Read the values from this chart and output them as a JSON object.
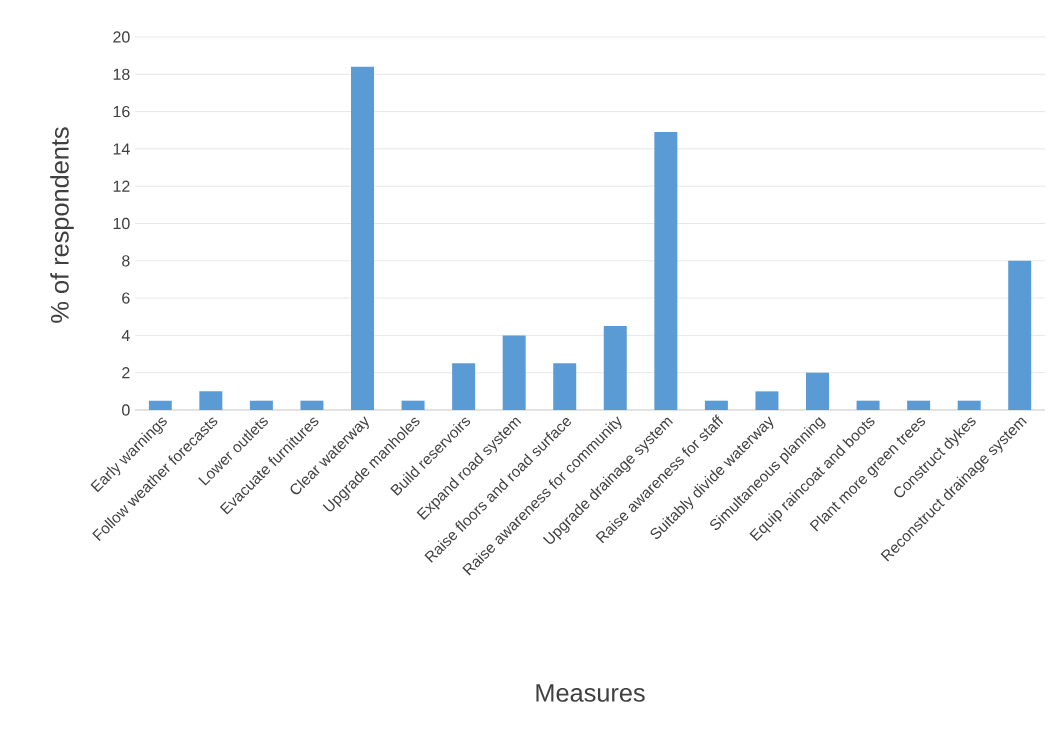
{
  "chart_data": {
    "type": "bar",
    "xlabel": "Measures",
    "ylabel": "% of respondents",
    "categories": [
      "Early warnings",
      "Follow weather forecasts",
      "Lower outlets",
      "Evacuate furnitures",
      "Clear waterway",
      "Upgrade manholes",
      "Build reservoirs",
      "Expand road system",
      "Raise floors and road surface",
      "Raise awareness for community",
      "Upgrade drainage system",
      "Raise awareness for staff",
      "Suitably divide waterway",
      "Simultaneous planning",
      "Equip raincoat and boots",
      "Plant more green trees",
      "Construct dykes",
      "Reconstruct drainage system"
    ],
    "values": [
      0.5,
      1,
      0.5,
      0.5,
      18.4,
      0.5,
      2.5,
      4,
      2.5,
      4.5,
      14.9,
      0.5,
      1,
      2,
      0.5,
      0.5,
      0.5,
      8
    ],
    "color": "#5b9bd5",
    "ylim": [
      0,
      20
    ],
    "yticks": [
      0,
      2,
      4,
      6,
      8,
      10,
      12,
      14,
      16,
      18,
      20
    ],
    "grid": "y"
  }
}
